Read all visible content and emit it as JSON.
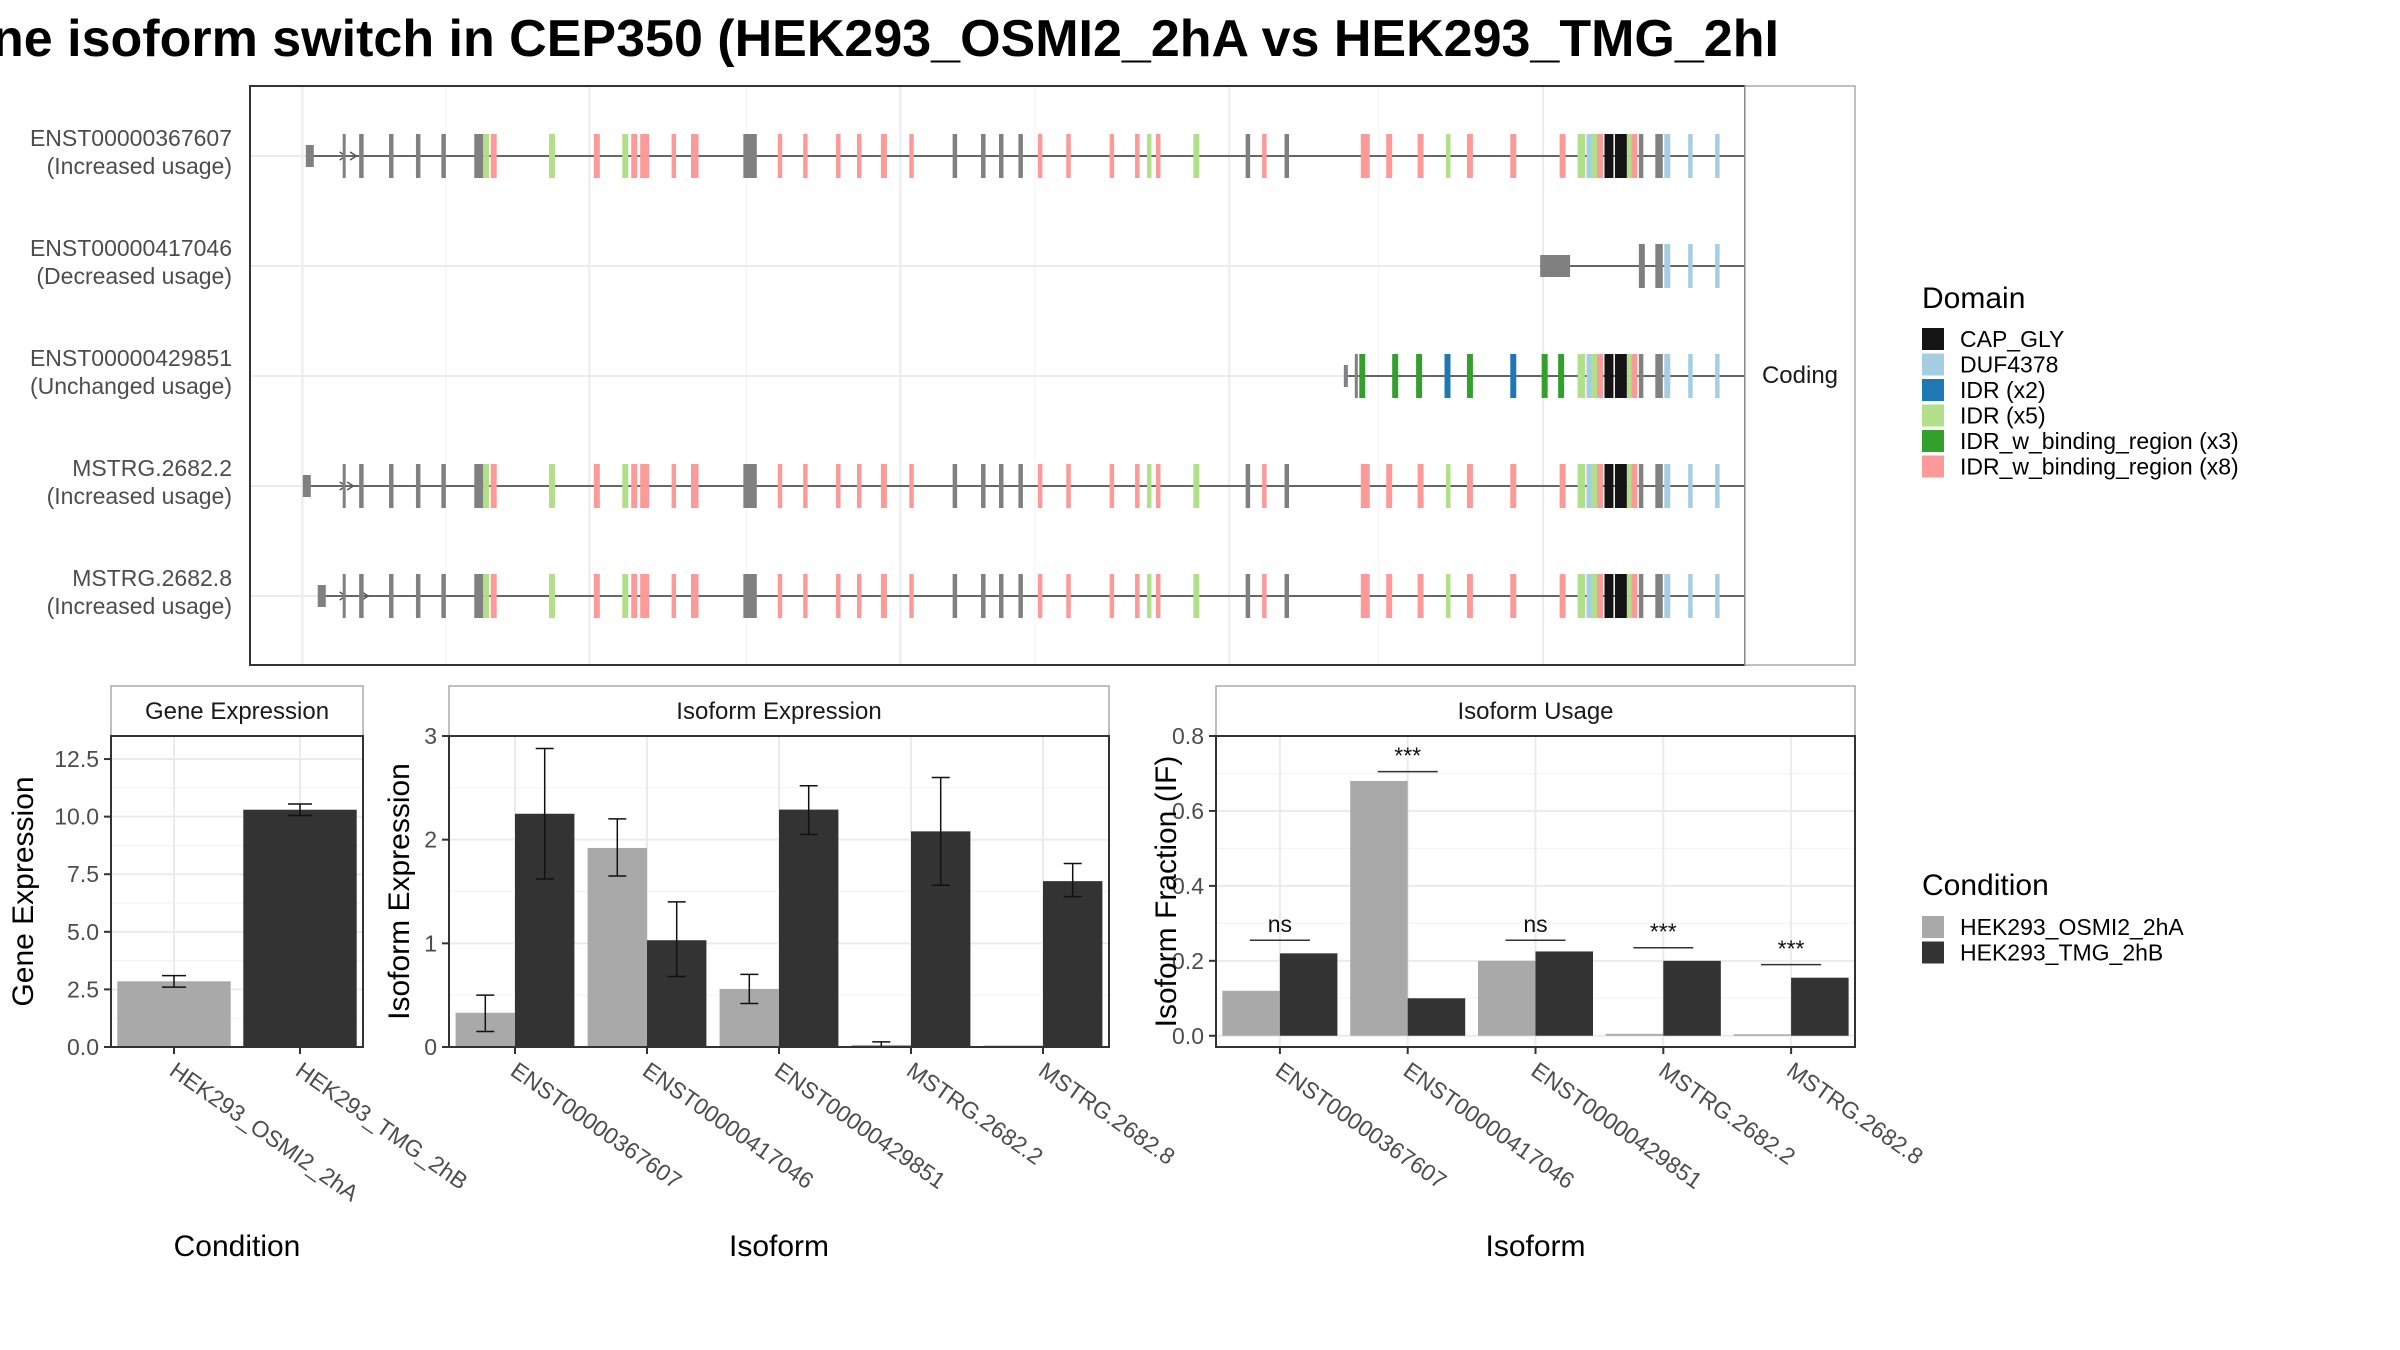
{
  "title": "ne isoform switch in CEP350 (HEK293_OSMI2_2hA vs HEK293_TMG_2hI",
  "transcripts": {
    "facet_label": "Coding",
    "rows": [
      {
        "id": "ENST00000367607",
        "status": "(Increased usage)",
        "layout": "full",
        "start": 0.04
      },
      {
        "id": "ENST00000417046",
        "status": "(Decreased usage)",
        "layout": "short",
        "start": 0.863
      },
      {
        "id": "ENST00000429851",
        "status": "(Unchanged usage)",
        "layout": "mid",
        "start": 0.733
      },
      {
        "id": "MSTRG.2682.2",
        "status": "(Increased usage)",
        "layout": "full",
        "start": 0.038
      },
      {
        "id": "MSTRG.2682.8",
        "status": "(Increased usage)",
        "layout": "full8",
        "start": 0.048
      }
    ]
  },
  "legend_domain": {
    "title": "Domain",
    "items": [
      {
        "label": "CAP_GLY",
        "color": "#141414"
      },
      {
        "label": "DUF4378",
        "color": "#a6cee3"
      },
      {
        "label": "IDR (x2)",
        "color": "#1f78b4"
      },
      {
        "label": "IDR (x5)",
        "color": "#b2df8a"
      },
      {
        "label": "IDR_w_binding_region (x3)",
        "color": "#33a02c"
      },
      {
        "label": "IDR_w_binding_region (x8)",
        "color": "#fb9a99"
      }
    ]
  },
  "legend_condition": {
    "title": "Condition",
    "items": [
      {
        "label": "HEK293_OSMI2_2hA",
        "color": "#a9a9a9"
      },
      {
        "label": "HEK293_TMG_2hB",
        "color": "#333333"
      }
    ]
  },
  "chart_data": [
    {
      "type": "bar",
      "title": "Gene Expression",
      "xlabel": "Condition",
      "ylabel": "Gene Expression",
      "ylim": [
        0,
        13.5
      ],
      "yticks": [
        "0.0",
        "2.5",
        "5.0",
        "7.5",
        "10.0",
        "12.5"
      ],
      "categories": [
        "HEK293_OSMI2_2hA",
        "HEK293_TMG_2hB"
      ],
      "values": [
        2.85,
        10.3
      ],
      "errors": [
        [
          2.6,
          3.1
        ],
        [
          10.05,
          10.55
        ]
      ]
    },
    {
      "type": "bar",
      "title": "Isoform Expression",
      "xlabel": "Isoform",
      "ylabel": "Isoform Expression",
      "ylim": [
        0,
        3.0
      ],
      "yticks": [
        "0",
        "1",
        "2",
        "3"
      ],
      "categories": [
        "ENST00000367607",
        "ENST00000417046",
        "ENST00000429851",
        "MSTRG.2682.2",
        "MSTRG.2682.8"
      ],
      "series": [
        {
          "name": "HEK293_OSMI2_2hA",
          "values": [
            0.33,
            1.92,
            0.56,
            0.02,
            0.0
          ],
          "errors": [
            [
              0.15,
              0.5
            ],
            [
              1.65,
              2.2
            ],
            [
              0.42,
              0.7
            ],
            [
              0.0,
              0.05
            ],
            [
              0.0,
              0.0
            ]
          ]
        },
        {
          "name": "HEK293_TMG_2hB",
          "values": [
            2.25,
            1.03,
            2.29,
            2.08,
            1.6
          ],
          "errors": [
            [
              1.62,
              2.88
            ],
            [
              0.68,
              1.4
            ],
            [
              2.05,
              2.52
            ],
            [
              1.56,
              2.6
            ],
            [
              1.45,
              1.77
            ]
          ]
        }
      ]
    },
    {
      "type": "bar",
      "title": "Isoform Usage",
      "xlabel": "Isoform",
      "ylabel": "Isoform Fraction (IF)",
      "ylim": [
        -0.03,
        0.8
      ],
      "yticks": [
        "0.0",
        "0.2",
        "0.4",
        "0.6",
        "0.8"
      ],
      "categories": [
        "ENST00000367607",
        "ENST00000417046",
        "ENST00000429851",
        "MSTRG.2682.2",
        "MSTRG.2682.8"
      ],
      "series": [
        {
          "name": "HEK293_OSMI2_2hA",
          "values": [
            0.12,
            0.68,
            0.2,
            0.005,
            0.0
          ]
        },
        {
          "name": "HEK293_TMG_2hB",
          "values": [
            0.22,
            0.1,
            0.225,
            0.2,
            0.155
          ]
        }
      ],
      "annotations": [
        {
          "label": "ns",
          "y": 0.255
        },
        {
          "label": "***",
          "y": 0.705
        },
        {
          "label": "ns",
          "y": 0.255
        },
        {
          "label": "***",
          "y": 0.235
        },
        {
          "label": "***",
          "y": 0.19
        }
      ]
    }
  ]
}
